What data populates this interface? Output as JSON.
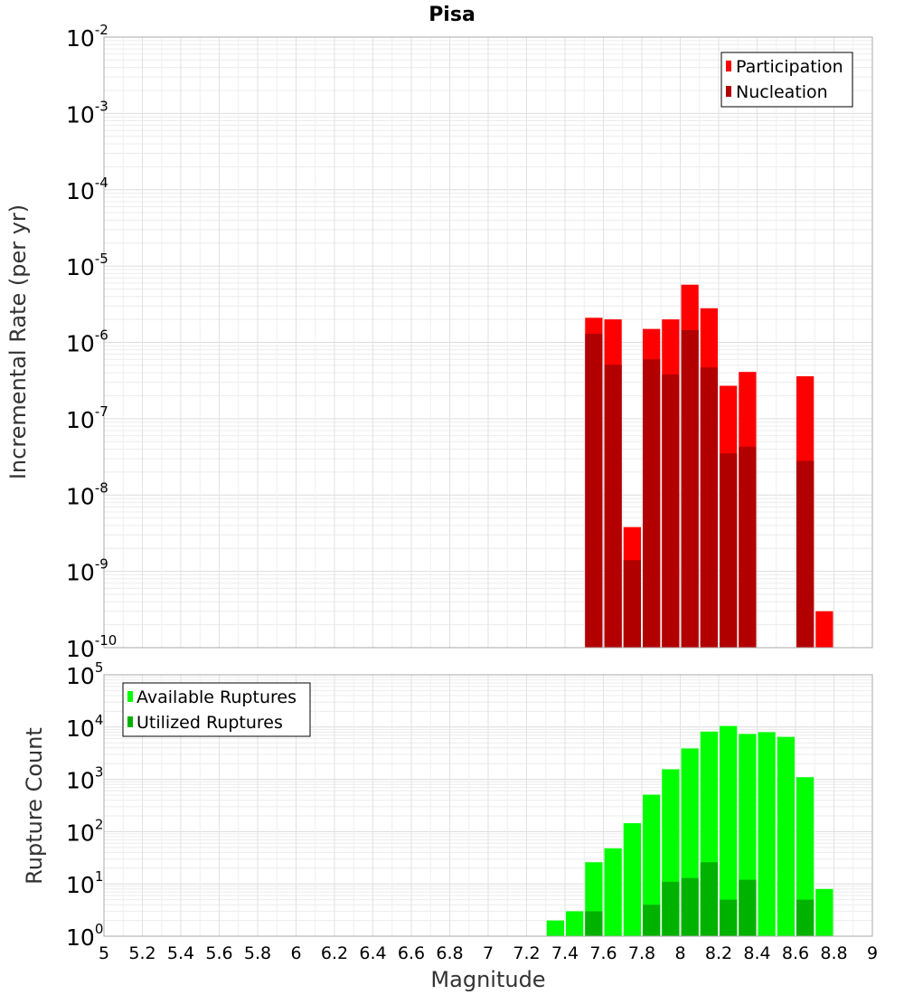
{
  "chart_data": [
    {
      "type": "bar",
      "scale": "log",
      "title": "Pisa",
      "xlabel": "",
      "ylabel": "Incremental Rate (per yr)",
      "xlim": [
        5,
        9
      ],
      "ylim_exponents": [
        -10,
        -2
      ],
      "bar_centers": [
        7.55,
        7.65,
        7.75,
        7.85,
        7.95,
        8.05,
        8.15,
        8.25,
        8.35,
        8.65,
        8.75
      ],
      "series": [
        {
          "name": "Participation",
          "color": "#ff0000",
          "values": [
            2.1e-06,
            2e-06,
            3.8e-09,
            1.5e-06,
            2e-06,
            5.7e-06,
            2.8e-06,
            2.7e-07,
            4.1e-07,
            3.6e-07,
            3e-10
          ]
        },
        {
          "name": "Nucleation",
          "color": "#b20000",
          "values": [
            1.3e-06,
            5.1e-07,
            1.4e-09,
            6e-07,
            3.8e-07,
            1.45e-06,
            4.7e-07,
            3.5e-08,
            4.3e-08,
            2.8e-08,
            null
          ]
        }
      ],
      "legend": {
        "position": "top-right",
        "entries": [
          "Participation",
          "Nucleation"
        ]
      }
    },
    {
      "type": "bar",
      "scale": "log",
      "title": "",
      "xlabel": "Magnitude",
      "ylabel": "Rupture Count",
      "xlim": [
        5,
        9
      ],
      "ylim_exponents": [
        0,
        5
      ],
      "bar_centers": [
        7.35,
        7.45,
        7.55,
        7.65,
        7.75,
        7.85,
        7.95,
        8.05,
        8.15,
        8.25,
        8.35,
        8.45,
        8.55,
        8.65,
        8.75
      ],
      "series": [
        {
          "name": "Available Ruptures",
          "color": "#00ff00",
          "values": [
            2,
            3,
            26,
            48,
            145,
            510,
            1560,
            3900,
            8200,
            10500,
            7400,
            8000,
            6500,
            1100,
            8
          ]
        },
        {
          "name": "Utilized Ruptures",
          "color": "#00b200",
          "values": [
            null,
            null,
            3,
            1,
            1,
            4,
            11,
            13,
            26,
            5,
            12,
            null,
            1,
            5,
            1
          ]
        }
      ],
      "legend": {
        "position": "top-left",
        "entries": [
          "Available Ruptures",
          "Utilized Ruptures"
        ]
      },
      "x_ticks": [
        "5",
        "5.2",
        "5.4",
        "5.6",
        "5.8",
        "6",
        "6.2",
        "6.4",
        "6.6",
        "6.8",
        "7",
        "7.2",
        "7.4",
        "7.6",
        "7.8",
        "8",
        "8.2",
        "8.4",
        "8.6",
        "8.8",
        "9"
      ]
    }
  ]
}
